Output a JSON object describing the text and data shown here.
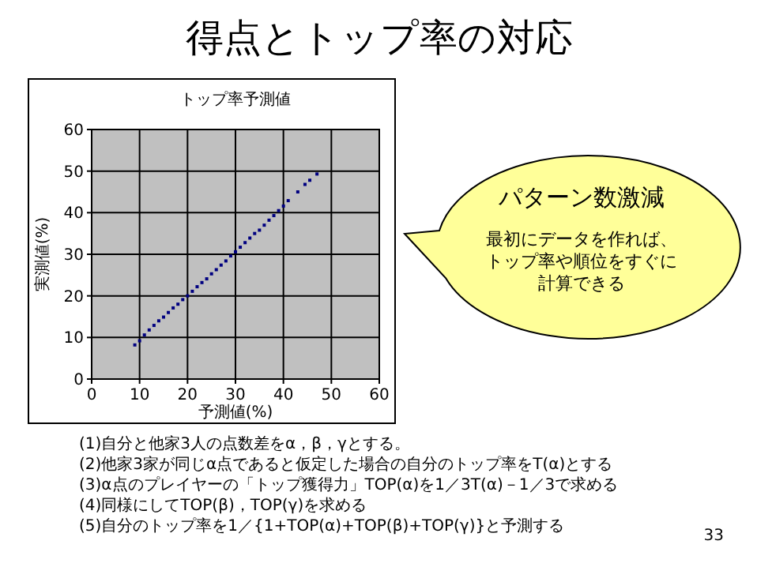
{
  "chart_data": {
    "type": "scatter",
    "title": "トップ率予測値",
    "xlabel": "予測値(%)",
    "ylabel": "実測値(%)",
    "x": [
      9,
      10,
      11,
      12,
      13,
      14,
      15,
      16,
      17,
      18,
      19,
      20,
      21,
      22,
      23,
      24,
      25,
      26,
      27,
      28,
      29,
      30,
      31,
      32,
      33,
      34,
      35,
      36,
      37,
      38,
      39,
      40,
      41,
      43,
      44.5,
      45.5,
      47
    ],
    "series": [
      {
        "color": "#000080",
        "values": [
          8.2,
          9.2,
          10.6,
          11.8,
          12.9,
          14.0,
          14.9,
          16.0,
          17.1,
          18.0,
          19.1,
          20.0,
          21.1,
          22.2,
          23.2,
          24.1,
          25.3,
          26.3,
          27.4,
          28.4,
          29.6,
          30.6,
          31.7,
          32.8,
          33.9,
          35.0,
          35.8,
          37.0,
          38.2,
          39.3,
          40.5,
          41.6,
          42.9,
          45.0,
          46.8,
          47.8,
          49.3
        ]
      }
    ],
    "xlim": [
      0,
      60
    ],
    "ylim": [
      0,
      60
    ],
    "xticks": [
      0,
      10,
      20,
      30,
      40,
      50,
      60
    ],
    "yticks": [
      0,
      10,
      20,
      30,
      40,
      50,
      60
    ],
    "grid": true,
    "marker": "square",
    "annotations": [
      "得点とトップ率の対応",
      "パターン数激減",
      "最初にデータを作れば、",
      "トップ率や順位をすぐに",
      "計算できる",
      "(1)自分と他家3人の点数差をα，β，γとする。",
      "(2)他家3家が同じα点であると仮定した場合の自分のトップ率をT(α)とする",
      "(3)α点のプレイヤーの「トップ獲得力」TOP(α)を1／3T(α)－1／3で求める",
      "(4)同様にしてTOP(β)，TOP(γ)を求める",
      "(5)自分のトップ率を1／{1+TOP(α)+TOP(β)+TOP(γ)}と予測する",
      "33"
    ]
  }
}
